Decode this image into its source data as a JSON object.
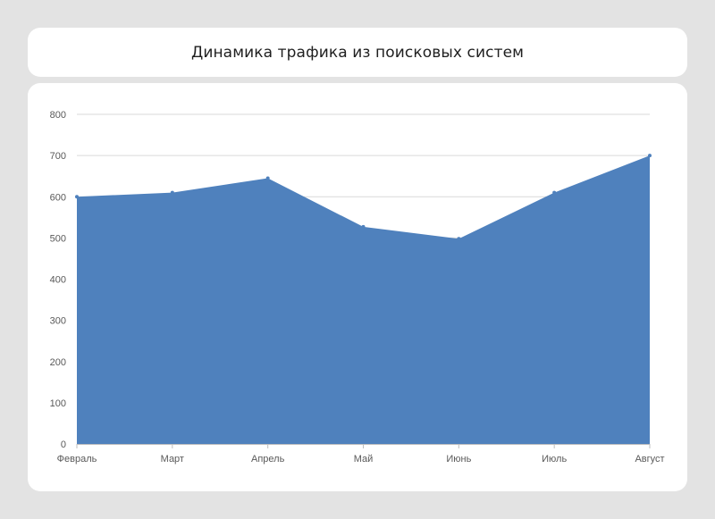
{
  "header": {
    "title": "Динамика трафика из поисковых систем"
  },
  "colors": {
    "background": "#e3e3e3",
    "card": "#ffffff",
    "area_fill": "#4f81bd",
    "gridline": "#d9d9d9",
    "axis": "#bfbfbf",
    "label": "#595959"
  },
  "chart_data": {
    "type": "area",
    "title": "Динамика трафика из поисковых систем",
    "categories": [
      "Февраль",
      "Март",
      "Апрель",
      "Май",
      "Июнь",
      "Июль",
      "Август"
    ],
    "series": [
      {
        "values": [
          600,
          610,
          645,
          527,
          498,
          610,
          700
        ]
      }
    ],
    "xlabel": "",
    "ylabel": "",
    "ylim": [
      0,
      800
    ],
    "yticks": [
      0,
      100,
      200,
      300,
      400,
      500,
      600,
      700,
      800
    ],
    "grid": true,
    "legend": "none"
  }
}
